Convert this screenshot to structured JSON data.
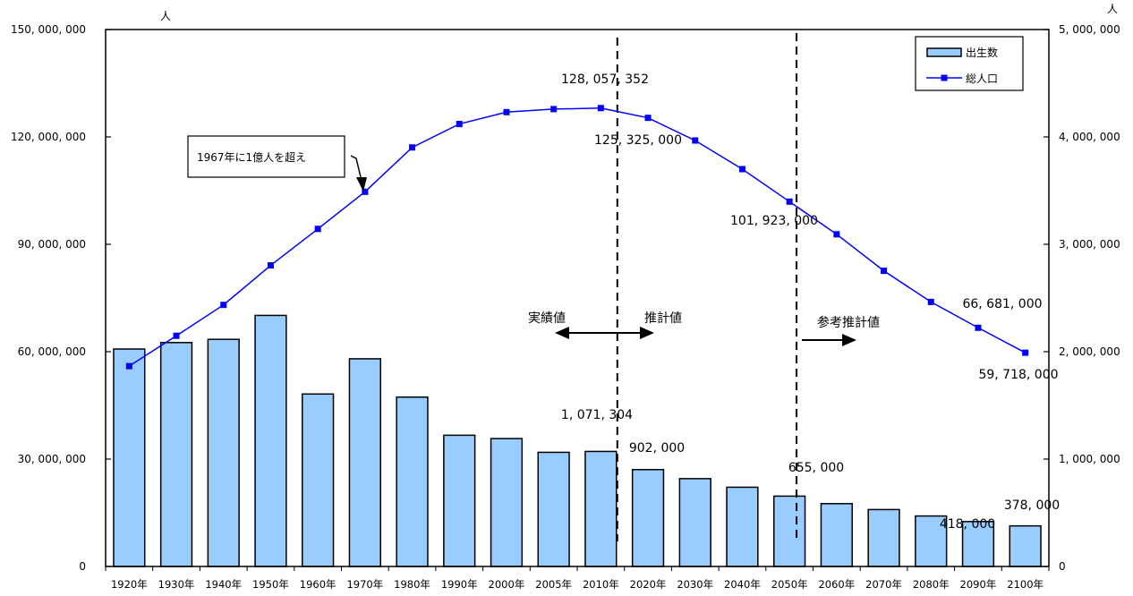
{
  "chart_data": {
    "type": "bar",
    "categories": [
      "1920年",
      "1930年",
      "1940年",
      "1950年",
      "1960年",
      "1970年",
      "1980年",
      "1990年",
      "2000年",
      "2005年",
      "2010年",
      "2020年",
      "2030年",
      "2040年",
      "2050年",
      "2060年",
      "2070年",
      "2080年",
      "2090年",
      "2100年"
    ],
    "series": [
      {
        "name": "出生数",
        "type": "bar",
        "axis": "right",
        "color": "#99ccff",
        "values": [
          2025000,
          2085000,
          2115000,
          2338000,
          1606000,
          1934000,
          1577000,
          1222000,
          1191000,
          1063000,
          1071304,
          902000,
          818000,
          738000,
          655000,
          585000,
          530000,
          470000,
          418000,
          378000
        ]
      },
      {
        "name": "総人口",
        "type": "line",
        "axis": "left",
        "color": "#0000ff",
        "values": [
          55963000,
          64450000,
          73075000,
          84115000,
          94302000,
          104665000,
          117060000,
          123611000,
          126926000,
          127768000,
          128057352,
          125325000,
          119000000,
          111000000,
          101923000,
          92800000,
          82600000,
          73900000,
          66681000,
          59718000
        ]
      }
    ],
    "y_left": {
      "unit": "人",
      "ylim": [
        0,
        150000000
      ],
      "ticks": [
        "0",
        "30, 000, 000",
        "60, 000, 000",
        "90, 000, 000",
        "120, 000, 000",
        "150, 000, 000"
      ]
    },
    "y_right": {
      "unit": "人",
      "ylim": [
        0,
        5000000
      ],
      "ticks": [
        "0",
        "1, 000, 000",
        "2, 000, 000",
        "3, 000, 000",
        "4, 000, 000",
        "5, 000, 000"
      ]
    },
    "legend": {
      "placement": "top-right",
      "items": [
        "出生数",
        "総人口"
      ]
    },
    "grid": false,
    "annotations": {
      "note_1967": "1967年に1億人を超え",
      "actual_label": "実績値",
      "estimate_label": "推計値",
      "reference_label": "参考推計値",
      "line_labels": [
        "128, 057, 352",
        "125, 325, 000",
        "101, 923, 000",
        "66, 681, 000",
        "59, 718, 000"
      ],
      "bar_labels": [
        "1, 071, 304",
        "902, 000",
        "655, 000",
        "418, 000",
        "378, 000"
      ]
    }
  }
}
